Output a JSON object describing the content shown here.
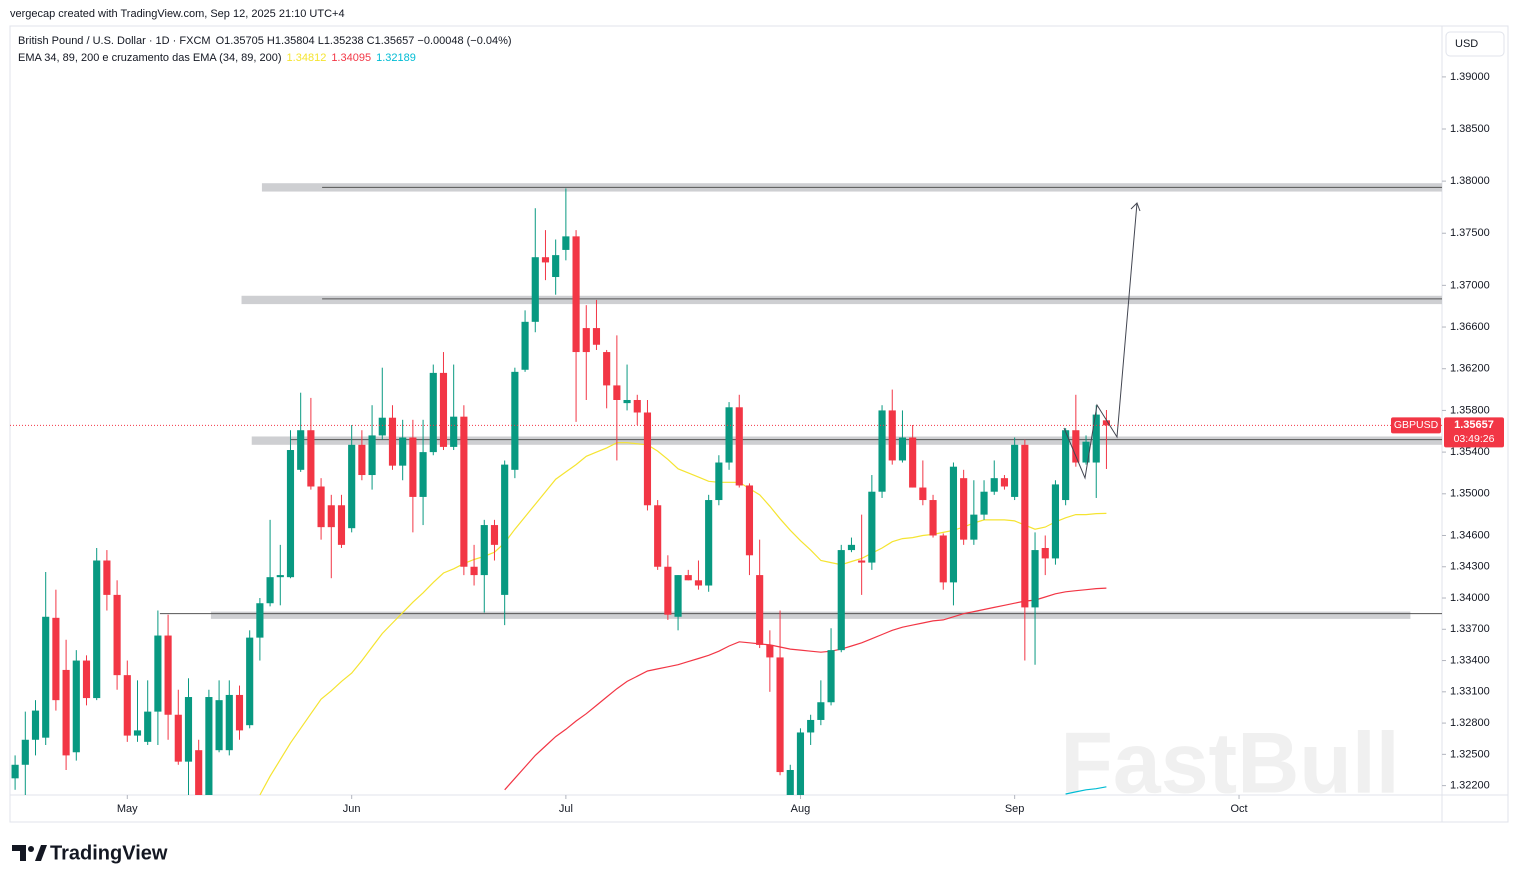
{
  "page": {
    "attribution": "vergecap created with TradingView.com, Sep 12, 2025 21:10 UTC+4",
    "brand": "TradingView",
    "watermark": "FastBull"
  },
  "chart_data": {
    "type": "candlestick",
    "title": "British Pound / U.S. Dollar · 1D · FXCM",
    "ohlc_text": "O1.35705 H1.35804 L1.35238 C1.35657 −0.00048 (−0.04%)",
    "indicator_title": "EMA 34, 89, 200 e cruzamento das EMA (34, 89, 200)",
    "currency": "USD",
    "symbol_tag": "GBPUSD",
    "countdown": "03:49:26",
    "up_color": "#089981",
    "down_color": "#f23645",
    "open": [
      1.3227,
      1.324,
      1.3264,
      1.3266,
      1.3381,
      1.3331,
      1.3252,
      1.334,
      1.3304,
      1.3436,
      1.3403,
      1.3326,
      1.3268,
      1.3262,
      1.3291,
      1.3364,
      1.3288,
      1.3243,
      1.3254,
      1.3211,
      1.3254,
      1.3254,
      1.3307,
      1.3278,
      1.3362,
      1.3395,
      1.342,
      1.342,
      1.3523,
      1.3561,
      1.3507,
      1.3489,
      1.3489,
      1.3467,
      1.3547,
      1.3518,
      1.3556,
      1.3573,
      1.3527,
      1.3554,
      1.3497,
      1.354,
      1.3616,
      1.3545,
      1.3574,
      1.343,
      1.3422,
      1.347,
      1.3403,
      1.3523,
      1.3619,
      1.3665,
      1.3727,
      1.3708,
      1.3734,
      1.3747,
      1.3659,
      1.3659,
      1.3636,
      1.3604,
      1.3587,
      1.359,
      1.3578,
      1.3489,
      1.343,
      1.3382,
      1.3422,
      1.3417,
      1.3412,
      1.3494,
      1.353,
      1.3583,
      1.3508,
      1.3422,
      1.3355,
      1.3343,
      1.3211,
      1.3211,
      1.3271,
      1.3283,
      1.33,
      1.335,
      1.3446,
      1.3436,
      1.3434,
      1.3502,
      1.358,
      1.3532,
      1.3554,
      1.3506,
      1.3494,
      1.346,
      1.3415,
      1.3515,
      1.3456,
      1.348,
      1.3502,
      1.3515,
      1.3497,
      1.3547,
      1.3391,
      1.3448,
      1.3438,
      1.3494,
      1.3561,
      1.353,
      1.353,
      1.35705
    ],
    "high": [
      1.3249,
      1.3291,
      1.3302,
      1.3425,
      1.3408,
      1.336,
      1.335,
      1.3345,
      1.3448,
      1.3446,
      1.3417,
      1.334,
      1.3321,
      1.3321,
      1.3388,
      1.3384,
      1.3312,
      1.3323,
      1.3264,
      1.3312,
      1.3321,
      1.3321,
      1.3316,
      1.3369,
      1.34,
      1.3475,
      1.3451,
      1.3561,
      1.3597,
      1.3592,
      1.3515,
      1.3499,
      1.3499,
      1.3566,
      1.3561,
      1.3585,
      1.3621,
      1.3585,
      1.3571,
      1.3571,
      1.3571,
      1.3624,
      1.3636,
      1.3624,
      1.3585,
      1.3451,
      1.3475,
      1.3475,
      1.3532,
      1.3621,
      1.3676,
      1.3774,
      1.3753,
      1.3744,
      1.3793,
      1.3753,
      1.3681,
      1.3686,
      1.3638,
      1.3652,
      1.3624,
      1.3595,
      1.359,
      1.3494,
      1.3441,
      1.3422,
      1.3427,
      1.3436,
      1.3499,
      1.3537,
      1.3588,
      1.3595,
      1.351,
      1.3456,
      1.3369,
      1.3388,
      1.324,
      1.3275,
      1.3288,
      1.3321,
      1.3371,
      1.3451,
      1.3458,
      1.348,
      1.3518,
      1.3585,
      1.36,
      1.358,
      1.3566,
      1.3532,
      1.3499,
      1.3462,
      1.353,
      1.3523,
      1.3513,
      1.3513,
      1.3532,
      1.3518,
      1.3554,
      1.3552,
      1.3463,
      1.346,
      1.3513,
      1.3563,
      1.3595,
      1.3556,
      1.3585,
      1.35804
    ],
    "low": [
      1.3216,
      1.3211,
      1.3249,
      1.3259,
      1.3292,
      1.3235,
      1.3244,
      1.3297,
      1.3302,
      1.3388,
      1.3312,
      1.3262,
      1.3262,
      1.3259,
      1.3259,
      1.3264,
      1.324,
      1.3211,
      1.3211,
      1.3211,
      1.3252,
      1.3249,
      1.3264,
      1.3275,
      1.334,
      1.3392,
      1.3393,
      1.3419,
      1.3521,
      1.3504,
      1.3456,
      1.3419,
      1.3448,
      1.3463,
      1.3513,
      1.3504,
      1.3552,
      1.3523,
      1.3513,
      1.3463,
      1.347,
      1.3537,
      1.3542,
      1.3542,
      1.3422,
      1.3412,
      1.3386,
      1.3436,
      1.3374,
      1.3515,
      1.3617,
      1.3655,
      1.3705,
      1.3691,
      1.3724,
      1.3569,
      1.359,
      1.3638,
      1.3582,
      1.3532,
      1.358,
      1.3566,
      1.3484,
      1.3427,
      1.3379,
      1.3369,
      1.3417,
      1.3408,
      1.3406,
      1.3489,
      1.3523,
      1.3506,
      1.3422,
      1.3352,
      1.331,
      1.323,
      1.3211,
      1.3211,
      1.3259,
      1.3278,
      1.3297,
      1.3348,
      1.3444,
      1.3403,
      1.3427,
      1.3496,
      1.3528,
      1.353,
      1.3506,
      1.3489,
      1.3458,
      1.3408,
      1.3393,
      1.3451,
      1.3451,
      1.3475,
      1.3499,
      1.3504,
      1.3494,
      1.334,
      1.3336,
      1.3422,
      1.3432,
      1.3489,
      1.3526,
      1.3528,
      1.3496,
      1.35238
    ],
    "close": [
      1.324,
      1.3264,
      1.3292,
      1.3382,
      1.3302,
      1.3249,
      1.334,
      1.3304,
      1.3436,
      1.3403,
      1.3326,
      1.3268,
      1.3273,
      1.3291,
      1.3364,
      1.3288,
      1.3243,
      1.3305,
      1.3211,
      1.3305,
      1.3302,
      1.3307,
      1.3273,
      1.3362,
      1.3395,
      1.342,
      1.3422,
      1.3542,
      1.3561,
      1.3507,
      1.3468,
      1.3468,
      1.3451,
      1.3547,
      1.3518,
      1.3556,
      1.3573,
      1.3527,
      1.3554,
      1.3497,
      1.354,
      1.3616,
      1.3545,
      1.3574,
      1.343,
      1.3422,
      1.347,
      1.3451,
      1.3528,
      1.3617,
      1.3665,
      1.3727,
      1.3722,
      1.3729,
      1.3747,
      1.3636,
      1.3636,
      1.3643,
      1.3604,
      1.359,
      1.359,
      1.3578,
      1.3489,
      1.343,
      1.3384,
      1.3422,
      1.3417,
      1.3412,
      1.3494,
      1.353,
      1.3583,
      1.3508,
      1.3441,
      1.3355,
      1.3343,
      1.3233,
      1.3235,
      1.3271,
      1.3283,
      1.33,
      1.335,
      1.3446,
      1.3451,
      1.3434,
      1.3502,
      1.358,
      1.3532,
      1.3554,
      1.3506,
      1.3494,
      1.346,
      1.3415,
      1.3526,
      1.3456,
      1.348,
      1.3502,
      1.3515,
      1.3507,
      1.3547,
      1.3391,
      1.3446,
      1.3438,
      1.3509,
      1.3561,
      1.353,
      1.355,
      1.3576,
      1.35657
    ],
    "series": [
      {
        "color": "#f5e431",
        "values": [
          null,
          null,
          null,
          null,
          null,
          null,
          null,
          null,
          null,
          null,
          null,
          null,
          null,
          null,
          null,
          null,
          null,
          null,
          null,
          null,
          null,
          null,
          null,
          null,
          1.3211,
          1.3229,
          1.3245,
          1.3261,
          1.3275,
          1.3289,
          1.3303,
          1.3311,
          1.332,
          1.3328,
          1.334,
          1.3353,
          1.3366,
          1.3376,
          1.3386,
          1.3396,
          1.3405,
          1.3415,
          1.3424,
          1.3428,
          1.3433,
          1.3437,
          1.344,
          1.3444,
          1.3453,
          1.3466,
          1.3478,
          1.349,
          1.3502,
          1.3514,
          1.3521,
          1.3528,
          1.3536,
          1.354,
          1.3544,
          1.3549,
          1.3549,
          1.3548,
          1.3547,
          1.3541,
          1.3533,
          1.3524,
          1.352,
          1.3516,
          1.3512,
          1.3511,
          1.3511,
          1.3511,
          1.3505,
          1.3499,
          1.3488,
          1.3476,
          1.3465,
          1.3455,
          1.3446,
          1.3436,
          1.3434,
          1.3432,
          1.3435,
          1.3438,
          1.3443,
          1.3448,
          1.3454,
          1.3457,
          1.3458,
          1.346,
          1.3461,
          1.3463,
          1.3465,
          1.3468,
          1.3472,
          1.3475,
          1.3475,
          1.3475,
          1.3474,
          1.347,
          1.3466,
          1.3468,
          1.3473,
          1.3477,
          1.348,
          1.348,
          1.3481,
          1.34812
        ]
      },
      {
        "color": "#f23645",
        "values": [
          null,
          null,
          null,
          null,
          null,
          null,
          null,
          null,
          null,
          null,
          null,
          null,
          null,
          null,
          null,
          null,
          null,
          null,
          null,
          null,
          null,
          null,
          null,
          null,
          null,
          null,
          null,
          null,
          null,
          null,
          null,
          null,
          null,
          null,
          null,
          null,
          null,
          null,
          null,
          null,
          null,
          null,
          null,
          null,
          null,
          null,
          null,
          null,
          1.3216,
          1.3227,
          1.3238,
          1.3249,
          1.3258,
          1.3267,
          1.3274,
          1.3282,
          1.3289,
          1.3297,
          1.3305,
          1.3313,
          1.332,
          1.3325,
          1.333,
          1.3332,
          1.3334,
          1.3336,
          1.3339,
          1.3342,
          1.3345,
          1.3349,
          1.3354,
          1.3358,
          1.3357,
          1.3356,
          1.3355,
          1.3353,
          1.3351,
          1.335,
          1.3349,
          1.3348,
          1.3349,
          1.3351,
          1.3354,
          1.3357,
          1.3361,
          1.3365,
          1.3369,
          1.3372,
          1.3374,
          1.3376,
          1.3378,
          1.3379,
          1.3382,
          1.3385,
          1.3387,
          1.3389,
          1.3391,
          1.3393,
          1.3395,
          1.3397,
          1.3398,
          1.3401,
          1.3404,
          1.3406,
          1.3407,
          1.3408,
          1.3409,
          1.34095
        ]
      },
      {
        "color": "#00bcd4",
        "values": [
          null,
          null,
          null,
          null,
          null,
          null,
          null,
          null,
          null,
          null,
          null,
          null,
          null,
          null,
          null,
          null,
          null,
          null,
          null,
          null,
          null,
          null,
          null,
          null,
          null,
          null,
          null,
          null,
          null,
          null,
          null,
          null,
          null,
          null,
          null,
          null,
          null,
          null,
          null,
          null,
          null,
          null,
          null,
          null,
          null,
          null,
          null,
          null,
          null,
          null,
          null,
          null,
          null,
          null,
          null,
          null,
          null,
          null,
          null,
          null,
          null,
          null,
          null,
          null,
          null,
          null,
          null,
          null,
          null,
          null,
          null,
          null,
          null,
          null,
          null,
          null,
          null,
          null,
          null,
          null,
          null,
          null,
          null,
          null,
          null,
          null,
          null,
          null,
          null,
          null,
          null,
          null,
          null,
          null,
          null,
          null,
          null,
          null,
          null,
          null,
          null,
          null,
          null,
          1.3212,
          1.3214,
          1.3216,
          1.3217,
          1.32189
        ]
      }
    ],
    "zones": [
      {
        "top": 1.3798,
        "bottom": 1.379,
        "line": 1.3794,
        "start": 24.2,
        "line_start": 30.1,
        "end": 139.9
      },
      {
        "top": 1.369,
        "bottom": 1.3682,
        "line": 1.3687,
        "start": 22.2,
        "line_start": 30.1,
        "end": 139.9
      },
      {
        "top": 1.3555,
        "bottom": 1.3547,
        "line": 1.3552,
        "start": 23.2,
        "line_start": 27,
        "end": 139.9
      },
      {
        "top": 1.3387,
        "bottom": 1.338,
        "line": 1.3385,
        "start": 19.2,
        "line_start": 14.2,
        "end": 136.8
      }
    ],
    "xlim": [
      -0.5,
      139.9
    ],
    "xticks": [
      {
        "value": 11,
        "label": "May"
      },
      {
        "value": 33,
        "label": "Jun"
      },
      {
        "value": 54,
        "label": "Jul"
      },
      {
        "value": 77,
        "label": "Aug"
      },
      {
        "value": 98,
        "label": "Sep"
      },
      {
        "value": 120,
        "label": "Oct"
      }
    ],
    "ylim": [
      1.3211,
      1.3945
    ],
    "yticks": [
      {
        "value": 1.39,
        "label": "1.39000"
      },
      {
        "value": 1.385,
        "label": "1.38500"
      },
      {
        "value": 1.38,
        "label": "1.38000"
      },
      {
        "value": 1.375,
        "label": "1.37500"
      },
      {
        "value": 1.37,
        "label": "1.37000"
      },
      {
        "value": 1.366,
        "label": "1.36600"
      },
      {
        "value": 1.362,
        "label": "1.36200"
      },
      {
        "value": 1.358,
        "label": "1.35800"
      },
      {
        "value": 1.354,
        "label": "1.35400"
      },
      {
        "value": 1.35,
        "label": "1.35000"
      },
      {
        "value": 1.346,
        "label": "1.34600"
      },
      {
        "value": 1.343,
        "label": "1.34300"
      },
      {
        "value": 1.34,
        "label": "1.34000"
      },
      {
        "value": 1.337,
        "label": "1.33700"
      },
      {
        "value": 1.334,
        "label": "1.33400"
      },
      {
        "value": 1.331,
        "label": "1.33100"
      },
      {
        "value": 1.328,
        "label": "1.32800"
      },
      {
        "value": 1.325,
        "label": "1.32500"
      },
      {
        "value": 1.322,
        "label": "1.32200"
      }
    ],
    "grid": false
  }
}
